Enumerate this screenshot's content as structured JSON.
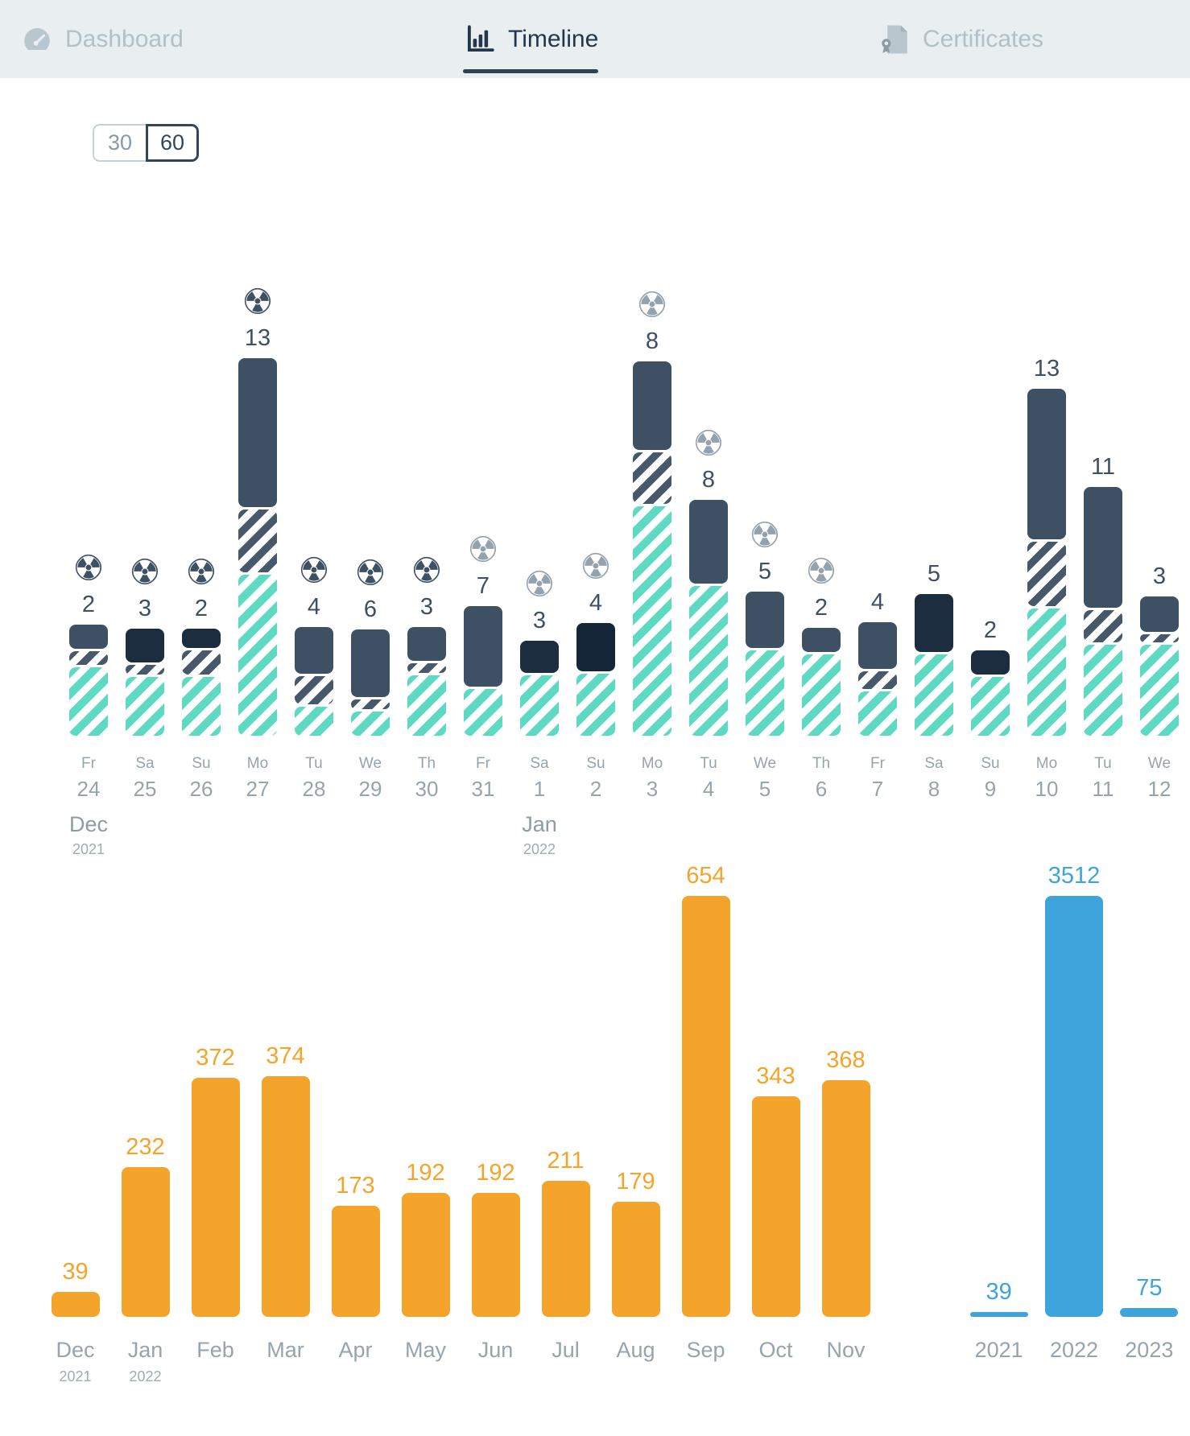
{
  "header": {
    "tabs": [
      {
        "label": "Dashboard",
        "icon": "gauge-icon",
        "active": false
      },
      {
        "label": "Timeline",
        "icon": "bar-chart-icon",
        "active": true
      },
      {
        "label": "Certificates",
        "icon": "certificate-icon",
        "active": false
      }
    ]
  },
  "range_toggle": {
    "options": [
      {
        "label": "30",
        "selected": false
      },
      {
        "label": "60",
        "selected": true
      }
    ]
  },
  "icons": {
    "radiation_glyph": "☢"
  },
  "colors": {
    "header_bg": "#E9EEF0",
    "nav_active": "#22374B",
    "nav_inactive": "#B3C0C7",
    "solid_slate": "#3D5064",
    "solid_navy": "#1B2D3F",
    "solid_darkest": "#132536",
    "dark_hatch": "#47586B",
    "teal_hatch": "#5EDAC3",
    "icon_dark": "#3E5063",
    "icon_gray": "#93A2AD",
    "axis_gray": "#96A4AD",
    "accent_orange": "#F5A42B",
    "accent_blue": "#3FA4DC"
  },
  "chart_data": [
    {
      "type": "bar",
      "name": "daily-stacked-bars",
      "stacking": "stacked",
      "x_axis_note": "days from Fr 24 Dec 2021 to We 12 Jan 2022",
      "segment_unit": "px-as-rendered",
      "bars": [
        {
          "day": "Fr",
          "date": "24",
          "month": "Dec",
          "year": "2021",
          "value": 2,
          "icon": "dark",
          "solid_color": "slate",
          "segments": {
            "solid": 30,
            "hatch": 17,
            "teal": 85
          }
        },
        {
          "day": "Sa",
          "date": "25",
          "value": 3,
          "icon": "dark",
          "solid_color": "navy",
          "segments": {
            "solid": 42,
            "hatch": 12,
            "teal": 73
          }
        },
        {
          "day": "Su",
          "date": "26",
          "value": 2,
          "icon": "dark",
          "solid_color": "navy",
          "segments": {
            "solid": 24,
            "hatch": 30,
            "teal": 73
          }
        },
        {
          "day": "Mo",
          "date": "27",
          "value": 13,
          "icon": "dark",
          "solid_color": "slate",
          "segments": {
            "solid": 185,
            "hatch": 78,
            "teal": 200
          }
        },
        {
          "day": "Tu",
          "date": "28",
          "value": 4,
          "icon": "dark",
          "solid_color": "slate",
          "segments": {
            "solid": 58,
            "hatch": 35,
            "teal": 36
          }
        },
        {
          "day": "We",
          "date": "29",
          "value": 6,
          "icon": "dark",
          "solid_color": "slate",
          "segments": {
            "solid": 84,
            "hatch": 12,
            "teal": 30
          }
        },
        {
          "day": "Th",
          "date": "30",
          "value": 3,
          "icon": "dark",
          "solid_color": "slate",
          "segments": {
            "solid": 42,
            "hatch": 12,
            "teal": 75
          }
        },
        {
          "day": "Fr",
          "date": "31",
          "value": 7,
          "icon": "gray",
          "solid_color": "slate",
          "segments": {
            "solid": 100,
            "hatch": 0,
            "teal": 58
          }
        },
        {
          "day": "Sa",
          "date": "1",
          "month": "Jan",
          "year": "2022",
          "value": 3,
          "icon": "gray",
          "solid_color": "navy",
          "segments": {
            "solid": 40,
            "hatch": 0,
            "teal": 75
          }
        },
        {
          "day": "Su",
          "date": "2",
          "value": 4,
          "icon": "gray",
          "solid_color": "darkest",
          "segments": {
            "solid": 60,
            "hatch": 0,
            "teal": 77
          }
        },
        {
          "day": "Mo",
          "date": "3",
          "value": 8,
          "icon": "gray",
          "solid_color": "slate",
          "segments": {
            "solid": 110,
            "hatch": 64,
            "teal": 285
          }
        },
        {
          "day": "Tu",
          "date": "4",
          "value": 8,
          "icon": "gray",
          "solid_color": "slate",
          "segments": {
            "solid": 104,
            "hatch": 0,
            "teal": 186
          }
        },
        {
          "day": "We",
          "date": "5",
          "value": 5,
          "icon": "gray",
          "solid_color": "slate",
          "segments": {
            "solid": 70,
            "hatch": 0,
            "teal": 106
          }
        },
        {
          "day": "Th",
          "date": "6",
          "value": 2,
          "icon": "gray",
          "solid_color": "slate",
          "segments": {
            "solid": 30,
            "hatch": 0,
            "teal": 101
          }
        },
        {
          "day": "Fr",
          "date": "7",
          "value": 4,
          "icon": null,
          "solid_color": "slate",
          "segments": {
            "solid": 58,
            "hatch": 22,
            "teal": 55
          }
        },
        {
          "day": "Sa",
          "date": "8",
          "value": 5,
          "icon": null,
          "solid_color": "navy",
          "segments": {
            "solid": 72,
            "hatch": 0,
            "teal": 101
          }
        },
        {
          "day": "Su",
          "date": "9",
          "value": 2,
          "icon": null,
          "solid_color": "navy",
          "segments": {
            "solid": 30,
            "hatch": 0,
            "teal": 73
          }
        },
        {
          "day": "Mo",
          "date": "10",
          "value": 13,
          "icon": null,
          "solid_color": "slate",
          "segments": {
            "solid": 187,
            "hatch": 80,
            "teal": 158
          }
        },
        {
          "day": "Tu",
          "date": "11",
          "value": 11,
          "icon": null,
          "solid_color": "slate",
          "segments": {
            "solid": 150,
            "hatch": 40,
            "teal": 113
          }
        },
        {
          "day": "We",
          "date": "12",
          "value": 3,
          "icon": null,
          "solid_color": "slate",
          "segments": {
            "solid": 44,
            "hatch": 10,
            "teal": 113
          }
        }
      ]
    },
    {
      "type": "bar",
      "name": "monthly-totals",
      "bar_color": "#F5A42B",
      "ymax": 654,
      "bars": [
        {
          "label": "Dec",
          "year": "2021",
          "value": 39
        },
        {
          "label": "Jan",
          "year": "2022",
          "value": 232
        },
        {
          "label": "Feb",
          "value": 372
        },
        {
          "label": "Mar",
          "value": 374
        },
        {
          "label": "Apr",
          "value": 173
        },
        {
          "label": "May",
          "value": 192
        },
        {
          "label": "Jun",
          "value": 192
        },
        {
          "label": "Jul",
          "value": 211
        },
        {
          "label": "Aug",
          "value": 179
        },
        {
          "label": "Sep",
          "value": 654
        },
        {
          "label": "Oct",
          "value": 343
        },
        {
          "label": "Nov",
          "value": 368
        }
      ]
    },
    {
      "type": "bar",
      "name": "yearly-totals",
      "bar_color": "#3FA4DC",
      "ymax": 3512,
      "bars": [
        {
          "label": "2021",
          "value": 39
        },
        {
          "label": "2022",
          "value": 3512
        },
        {
          "label": "2023",
          "value": 75
        }
      ]
    }
  ]
}
